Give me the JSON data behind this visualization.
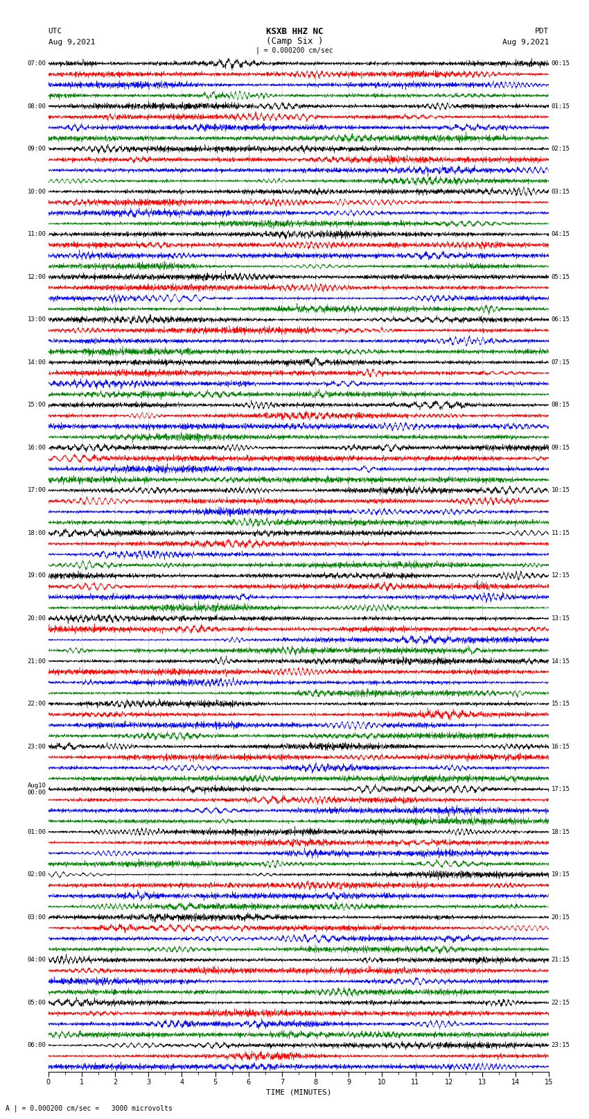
{
  "title_line1": "KSXB HHZ NC",
  "title_line2": "(Camp Six )",
  "utc_label": "UTC",
  "pdt_label": "PDT",
  "date_left": "Aug 9,2021",
  "date_right": "Aug 9,2021",
  "scale_label": "| = 0.000200 cm/sec",
  "bottom_label": "A | = 0.000200 cm/sec =   3000 microvolts",
  "xlabel": "TIME (MINUTES)",
  "xlim": [
    0,
    15
  ],
  "xticks": [
    0,
    1,
    2,
    3,
    4,
    5,
    6,
    7,
    8,
    9,
    10,
    11,
    12,
    13,
    14,
    15
  ],
  "colors": [
    "black",
    "red",
    "blue",
    "green"
  ],
  "bg_color": "white",
  "amplitude": 0.32,
  "noise_seed": 42,
  "left_times": [
    "07:00",
    "",
    "",
    "",
    "08:00",
    "",
    "",
    "",
    "09:00",
    "",
    "",
    "",
    "10:00",
    "",
    "",
    "",
    "11:00",
    "",
    "",
    "",
    "12:00",
    "",
    "",
    "",
    "13:00",
    "",
    "",
    "",
    "14:00",
    "",
    "",
    "",
    "15:00",
    "",
    "",
    "",
    "16:00",
    "",
    "",
    "",
    "17:00",
    "",
    "",
    "",
    "18:00",
    "",
    "",
    "",
    "19:00",
    "",
    "",
    "",
    "20:00",
    "",
    "",
    "",
    "21:00",
    "",
    "",
    "",
    "22:00",
    "",
    "",
    "",
    "23:00",
    "",
    "",
    "",
    "Aug10\n00:00",
    "",
    "",
    "",
    "01:00",
    "",
    "",
    "",
    "02:00",
    "",
    "",
    "",
    "03:00",
    "",
    "",
    "",
    "04:00",
    "",
    "",
    "",
    "05:00",
    "",
    "",
    "",
    "06:00",
    "",
    ""
  ],
  "right_times": [
    "00:15",
    "",
    "",
    "",
    "01:15",
    "",
    "",
    "",
    "02:15",
    "",
    "",
    "",
    "03:15",
    "",
    "",
    "",
    "04:15",
    "",
    "",
    "",
    "05:15",
    "",
    "",
    "",
    "06:15",
    "",
    "",
    "",
    "07:15",
    "",
    "",
    "",
    "08:15",
    "",
    "",
    "",
    "09:15",
    "",
    "",
    "",
    "10:15",
    "",
    "",
    "",
    "11:15",
    "",
    "",
    "",
    "12:15",
    "",
    "",
    "",
    "13:15",
    "",
    "",
    "",
    "14:15",
    "",
    "",
    "",
    "15:15",
    "",
    "",
    "",
    "16:15",
    "",
    "",
    "",
    "17:15",
    "",
    "",
    "",
    "18:15",
    "",
    "",
    "",
    "19:15",
    "",
    "",
    "",
    "20:15",
    "",
    "",
    "",
    "21:15",
    "",
    "",
    "",
    "22:15",
    "",
    "",
    "",
    "23:15",
    "",
    ""
  ]
}
